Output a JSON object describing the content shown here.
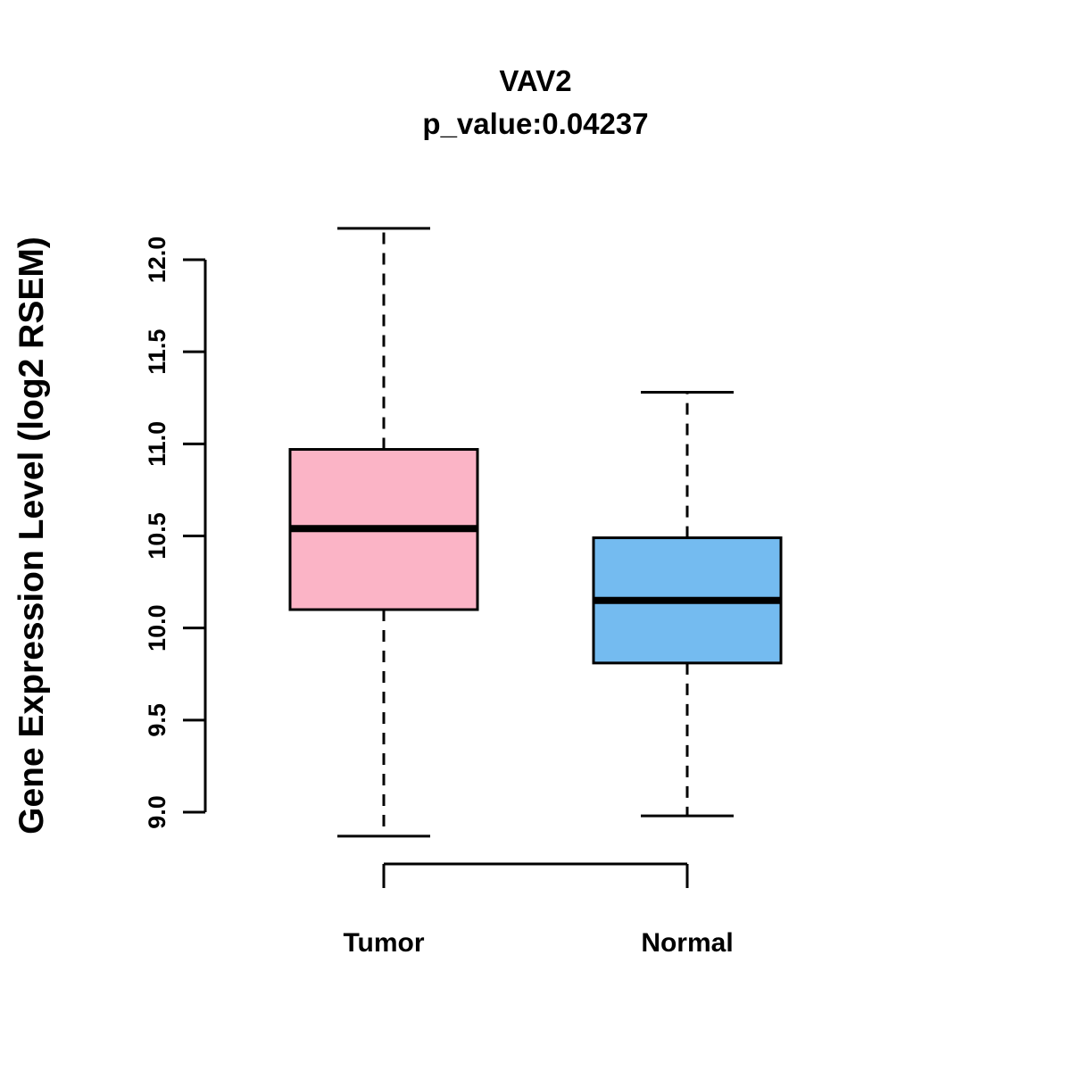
{
  "title": "VAV2",
  "subtitle": "p_value:0.04237",
  "y_axis_label": "Gene Expression Level (log2 RSEM)",
  "colors": {
    "tumor_box": "#FBB4C6",
    "normal_box": "#74BBF0",
    "line": "#000000",
    "background": "#FFFFFF"
  },
  "chart_data": {
    "type": "boxplot",
    "title": "VAV2",
    "subtitle": "p_value:0.04237",
    "p_value": 0.04237,
    "ylabel": "Gene Expression Level (log2 RSEM)",
    "categories": [
      "Tumor",
      "Normal"
    ],
    "y_ticks": [
      9.0,
      9.5,
      10.0,
      10.5,
      11.0,
      11.5,
      12.0
    ],
    "ylim": [
      9.0,
      12.0
    ],
    "grid": false,
    "legend": false,
    "whisker_style": "dashed",
    "series": [
      {
        "name": "Tumor",
        "whisker_low": 8.87,
        "q1": 10.1,
        "median": 10.54,
        "q3": 10.97,
        "whisker_high": 12.17,
        "color": "#FBB4C6"
      },
      {
        "name": "Normal",
        "whisker_low": 8.98,
        "q1": 9.81,
        "median": 10.15,
        "q3": 10.49,
        "whisker_high": 11.28,
        "color": "#74BBF0"
      }
    ]
  }
}
